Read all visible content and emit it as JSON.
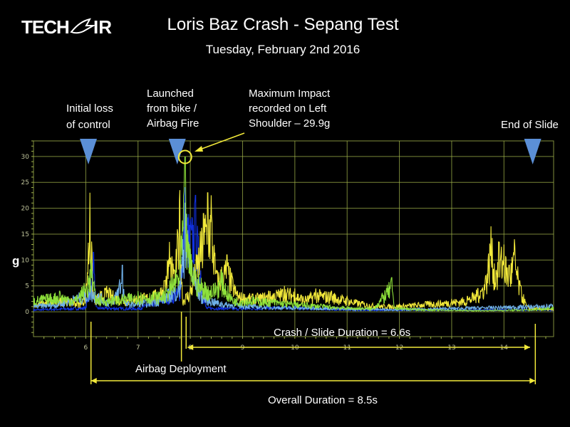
{
  "logo": {
    "text": "TECH AIR"
  },
  "title": "Loris Baz Crash - Sepang Test",
  "subtitle": "Tuesday, February 2nd 2016",
  "annotations": {
    "initial_loss": [
      "Initial loss",
      "of control"
    ],
    "launched": [
      "Launched",
      "from bike /",
      "Airbag Fire"
    ],
    "max_impact": [
      "Maximum Impact",
      "recorded on Left",
      "Shoulder – 29.9g"
    ],
    "end_of_slide": "End of Slide",
    "crash_slide_duration": "Crash / Slide Duration = 6.6s",
    "airbag_deployment": "Airbag Deployment",
    "overall_duration": "Overall Duration = 8.5s"
  },
  "colors": {
    "grid": "#9fb24a",
    "marker": "#5b8fd6",
    "annotation": "#f2e93a",
    "yellow": "#f2e93a",
    "green": "#8de03a",
    "light_blue": "#6fb0e8",
    "dark_blue": "#1030e0"
  },
  "chart_data": {
    "type": "line",
    "title": "Loris Baz Crash - Sepang Test",
    "xlabel": "",
    "ylabel": "g",
    "xlim": [
      5.0,
      14.95
    ],
    "ylim": [
      -4.8,
      33
    ],
    "xticks": [
      6,
      7,
      8,
      9,
      10,
      11,
      12,
      13,
      14
    ],
    "yticks": [
      0,
      5,
      10,
      15,
      20,
      25,
      30
    ],
    "grid": true,
    "markers_x": [
      6.05,
      7.75,
      14.55
    ],
    "max_impact": {
      "x": 7.9,
      "y": 29.9
    },
    "series": [
      {
        "color": "#1030e0",
        "points": [
          [
            5.0,
            0.5
          ],
          [
            6.0,
            1
          ],
          [
            6.15,
            11.5
          ],
          [
            6.2,
            1
          ],
          [
            7.0,
            0.8
          ],
          [
            7.8,
            5
          ],
          [
            7.9,
            24
          ],
          [
            8.0,
            18
          ],
          [
            8.1,
            22.5
          ],
          [
            8.2,
            8
          ],
          [
            8.3,
            1
          ],
          [
            9,
            0.8
          ],
          [
            10,
            1.2
          ],
          [
            11,
            0.5
          ],
          [
            14.9,
            0.5
          ]
        ]
      },
      {
        "color": "#f2e93a",
        "points": [
          [
            5.0,
            2
          ],
          [
            5.3,
            2.5
          ],
          [
            5.6,
            3
          ],
          [
            5.9,
            2
          ],
          [
            6.0,
            4
          ],
          [
            6.08,
            23
          ],
          [
            6.15,
            3
          ],
          [
            6.4,
            5
          ],
          [
            6.7,
            3
          ],
          [
            7.0,
            3.5
          ],
          [
            7.3,
            4
          ],
          [
            7.5,
            6
          ],
          [
            7.6,
            13.5
          ],
          [
            7.7,
            8
          ],
          [
            7.8,
            23.5
          ],
          [
            7.85,
            3
          ],
          [
            8.0,
            5
          ],
          [
            8.25,
            19
          ],
          [
            8.33,
            23
          ],
          [
            8.4,
            22.5
          ],
          [
            8.5,
            8
          ],
          [
            8.7,
            11
          ],
          [
            8.9,
            4
          ],
          [
            9.2,
            3.5
          ],
          [
            9.5,
            4
          ],
          [
            9.8,
            5
          ],
          [
            10.0,
            4.5
          ],
          [
            10.2,
            3
          ],
          [
            10.4,
            4.5
          ],
          [
            10.7,
            4
          ],
          [
            11.0,
            3
          ],
          [
            11.3,
            2
          ],
          [
            11.6,
            1.5
          ],
          [
            12.0,
            1.5
          ],
          [
            12.5,
            2
          ],
          [
            13.0,
            2.5
          ],
          [
            13.3,
            3
          ],
          [
            13.5,
            4.5
          ],
          [
            13.65,
            7
          ],
          [
            13.75,
            16.5
          ],
          [
            13.85,
            8
          ],
          [
            13.9,
            13.5
          ],
          [
            14.0,
            13
          ],
          [
            14.1,
            9
          ],
          [
            14.2,
            14
          ],
          [
            14.3,
            6
          ],
          [
            14.45,
            1
          ],
          [
            14.95,
            0.5
          ]
        ]
      },
      {
        "color": "#6fb0e8",
        "points": [
          [
            5.0,
            1.5
          ],
          [
            5.5,
            2
          ],
          [
            6.1,
            5
          ],
          [
            6.5,
            2
          ],
          [
            6.7,
            9
          ],
          [
            6.75,
            2
          ],
          [
            7.3,
            2.5
          ],
          [
            7.8,
            6
          ],
          [
            7.9,
            21
          ],
          [
            8.0,
            12
          ],
          [
            8.2,
            4
          ],
          [
            8.6,
            2
          ],
          [
            9.5,
            1.2
          ],
          [
            11,
            0.8
          ],
          [
            12,
            0.6
          ],
          [
            14.9,
            1.5
          ]
        ]
      },
      {
        "color": "#8de03a",
        "points": [
          [
            5.0,
            3
          ],
          [
            5.5,
            4
          ],
          [
            5.8,
            3
          ],
          [
            6.05,
            7
          ],
          [
            6.1,
            10
          ],
          [
            6.2,
            3
          ],
          [
            6.5,
            3
          ],
          [
            7.0,
            4
          ],
          [
            7.5,
            4
          ],
          [
            7.8,
            10
          ],
          [
            7.9,
            29.9
          ],
          [
            7.95,
            15
          ],
          [
            8.1,
            8
          ],
          [
            8.4,
            5
          ],
          [
            8.6,
            8
          ],
          [
            8.8,
            3
          ],
          [
            9.2,
            3
          ],
          [
            9.6,
            2.5
          ],
          [
            10.0,
            2
          ],
          [
            10.5,
            1.5
          ],
          [
            11.0,
            1
          ],
          [
            11.5,
            0.8
          ],
          [
            11.85,
            6.6
          ],
          [
            11.9,
            1
          ],
          [
            12.5,
            0.5
          ],
          [
            13.5,
            0.3
          ],
          [
            14.5,
            0.5
          ],
          [
            14.95,
            1
          ]
        ]
      }
    ],
    "events": {
      "initial_loss_x": 6.1,
      "airbag_x": 7.83,
      "launch_x": 7.92,
      "end_x": 14.6,
      "crash_slide_range": [
        7.92,
        14.5
      ],
      "overall_range": [
        6.1,
        14.6
      ]
    }
  }
}
